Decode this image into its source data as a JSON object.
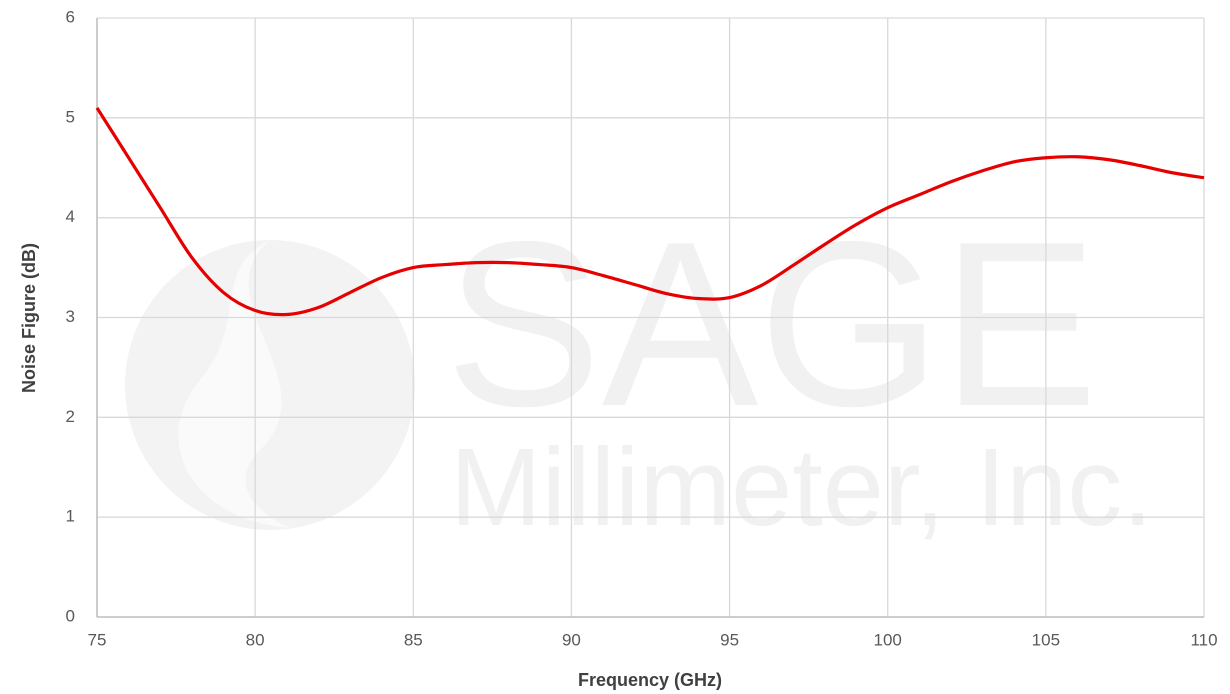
{
  "chart_data": {
    "type": "line",
    "watermark": "SAGE",
    "watermark_subtitle": "Millimeter, Inc.",
    "x_label": "Frequency (GHz)",
    "y_label": "Noise Figure (dB)",
    "x": [
      75,
      76,
      77,
      78,
      79,
      80,
      81,
      82,
      83,
      84,
      85,
      86,
      87,
      88,
      89,
      90,
      91,
      92,
      93,
      94,
      95,
      96,
      97,
      98,
      99,
      100,
      101,
      102,
      103,
      104,
      105,
      106,
      107,
      108,
      109,
      110
    ],
    "series": [
      {
        "name": "Noise Figure",
        "color": "#e60000",
        "values": [
          5.1,
          4.6,
          4.1,
          3.6,
          3.25,
          3.07,
          3.03,
          3.1,
          3.25,
          3.4,
          3.5,
          3.53,
          3.55,
          3.55,
          3.53,
          3.5,
          3.42,
          3.33,
          3.24,
          3.19,
          3.2,
          3.32,
          3.52,
          3.73,
          3.93,
          4.1,
          4.23,
          4.36,
          4.47,
          4.56,
          4.6,
          4.61,
          4.58,
          4.52,
          4.45,
          4.4
        ]
      }
    ],
    "xlim": [
      75,
      110
    ],
    "xticks": [
      75,
      80,
      85,
      90,
      95,
      100,
      105,
      110
    ],
    "ylim": [
      0,
      6
    ],
    "yticks": [
      0,
      1,
      2,
      3,
      4,
      5,
      6
    ],
    "grid": true
  }
}
